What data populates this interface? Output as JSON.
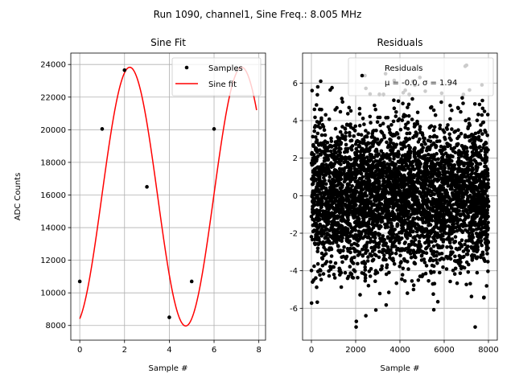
{
  "figure_title": "Run 1090, channel1, Sine Freq.: 8.005 MHz",
  "chart_data": [
    {
      "type": "line",
      "title": "Sine Fit",
      "xlabel": "Sample #",
      "ylabel": "ADC Counts",
      "xlim": [
        -0.4,
        8.3
      ],
      "ylim": [
        7100,
        24700
      ],
      "xticks": [
        0,
        2,
        4,
        6,
        8
      ],
      "yticks": [
        8000,
        10000,
        12000,
        14000,
        16000,
        18000,
        20000,
        22000,
        24000
      ],
      "grid": true,
      "legend_position": "top-right",
      "series": [
        {
          "name": "Samples",
          "style": "points",
          "color": "#000000",
          "x": [
            0,
            1,
            2,
            3,
            4,
            5,
            6,
            7
          ],
          "y": [
            10700,
            20050,
            23650,
            16500,
            8500,
            10700,
            20050,
            23650
          ]
        },
        {
          "name": "Sine fit",
          "style": "line",
          "color": "#ff0000",
          "x_range": [
            0,
            7.9
          ],
          "model": {
            "amplitude": 7930,
            "offset": 15900,
            "frequency_per_sample": 0.2,
            "phase_rad": -1.235
          }
        }
      ]
    },
    {
      "type": "scatter",
      "title": "Residuals",
      "xlabel": "Sample #",
      "ylabel": "",
      "xlim": [
        -400,
        8400
      ],
      "ylim": [
        -7.7,
        7.6
      ],
      "xticks": [
        0,
        2000,
        4000,
        6000,
        8000
      ],
      "yticks": [
        -6,
        -4,
        -2,
        0,
        2,
        4,
        6
      ],
      "grid": true,
      "legend_position": "top-right",
      "series": [
        {
          "name": "Residuals",
          "color": "#000000",
          "mean": -0.0,
          "sigma": 1.94,
          "x_range": [
            0,
            8000
          ],
          "outliers": [
            {
              "x": 30,
              "y": 5.6
            },
            {
              "x": 420,
              "y": 6.1
            },
            {
              "x": 2020,
              "y": -7.0
            },
            {
              "x": 2030,
              "y": -6.7
            },
            {
              "x": 3350,
              "y": 6.5
            },
            {
              "x": 4900,
              "y": 6.3
            },
            {
              "x": 6950,
              "y": 6.9
            },
            {
              "x": 7010,
              "y": 6.95
            },
            {
              "x": 7400,
              "y": -7.0
            },
            {
              "x": 2460,
              "y": -6.4
            },
            {
              "x": 50,
              "y": -4.6
            },
            {
              "x": 2420,
              "y": 6.4
            }
          ]
        }
      ],
      "legend": {
        "label": "Residuals",
        "stats_line": "μ = -0.0, σ = 1.94"
      }
    }
  ]
}
